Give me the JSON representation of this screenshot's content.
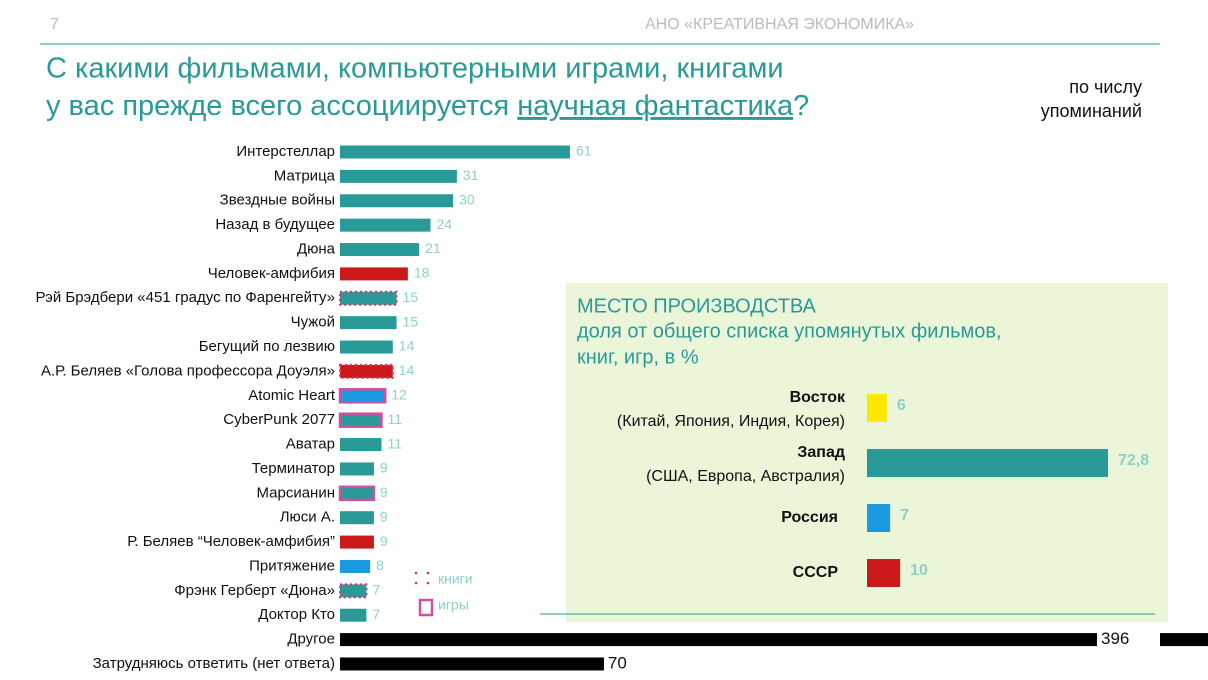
{
  "page_number": "7",
  "organization": "АНО «КРЕАТИВНАЯ ЭКОНОМИКА»",
  "title_line1": "С какими фильмами, компьютерными играми, книгами",
  "title_line2_start": "у вас прежде всего ассоциируется ",
  "title_line2_highlight": "научная фантастика",
  "title_line2_end": "?",
  "note": [
    "по числу",
    "упоминаний"
  ],
  "chart_data": [
    {
      "type": "bar",
      "orientation": "horizontal",
      "categories": [
        "Интерстеллар",
        "Матрица",
        "Звездные войны",
        "Назад в будущее",
        "Дюна",
        "Человек-амфибия",
        "Рэй Брэдбери «451 градус по Фаренгейту»",
        "Чужой",
        "Бегущий по лезвию",
        "А.Р. Беляев «Голова профессора Доуэля»",
        "Atomic Heart",
        "CyberPunk 2077",
        "Аватар",
        "Терминатор",
        "Марсианин",
        "Люси А.",
        "Р. Беляев “Человек-амфибия”",
        "Притяжение",
        "Фрэнк Герберт «Дюна»",
        "Доктор Кто",
        "Другое",
        "Затрудняюсь ответить (нет ответа)"
      ],
      "values": [
        61,
        31,
        30,
        24,
        21,
        18,
        15,
        15,
        14,
        14,
        12,
        11,
        11,
        9,
        9,
        9,
        9,
        8,
        7,
        7,
        396,
        70
      ],
      "colors": [
        "#2a9a98",
        "#2a9a98",
        "#2a9a98",
        "#2a9a98",
        "#2a9a98",
        "#cc1a1a",
        "#2a9a98",
        "#2a9a98",
        "#2a9a98",
        "#cc1a1a",
        "#1a9ae0",
        "#2a9a98",
        "#2a9a98",
        "#2a9a98",
        "#2a9a98",
        "#2a9a98",
        "#cc1a1a",
        "#1a9ae0",
        "#2a9a98",
        "#2a9a98",
        "#000000",
        "#000000"
      ],
      "markers": [
        null,
        null,
        null,
        null,
        null,
        null,
        0,
        null,
        null,
        0,
        1,
        1,
        null,
        null,
        1,
        null,
        null,
        null,
        0,
        null,
        null,
        null
      ],
      "legend": [
        {
          "label": "книги",
          "color": "#e0306a"
        },
        {
          "label": "игры",
          "color": "#d050a0"
        }
      ]
    },
    {
      "type": "bar",
      "orientation": "horizontal",
      "title": "МЕСТО ПРОИЗВОДСТВА",
      "subtitle": [
        "доля от общего списка упомянутых фильмов,",
        "книг, игр, в %"
      ],
      "categories": [
        "Восток",
        "Запад",
        "Россия",
        "СССР"
      ],
      "category_notes": [
        "(Китай, Япония, Индия, Корея)",
        "(США, Европа, Австралия)",
        null,
        null
      ],
      "values": [
        6,
        72.8,
        7,
        10
      ],
      "value_labels": [
        "6",
        "72,8",
        "7",
        "10"
      ],
      "colors": [
        "#ffe800",
        "#2a9a98",
        "#1a9ae0",
        "#cc1a1a"
      ]
    }
  ]
}
